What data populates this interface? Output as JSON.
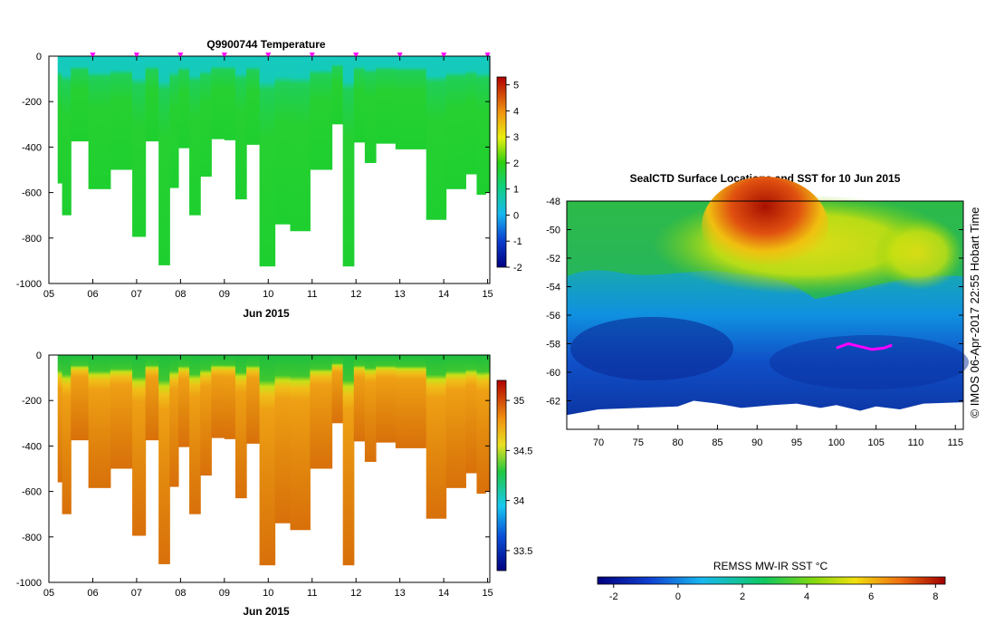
{
  "chart_data": [
    {
      "type": "heatmap",
      "title": "Q9900744  Temperature",
      "xlabel": "Jun 2015",
      "ylabel": "",
      "xlim": [
        5,
        15.05
      ],
      "ylim": [
        -1000,
        0
      ],
      "xticks": [
        "05",
        "06",
        "07",
        "08",
        "09",
        "10",
        "11",
        "12",
        "13",
        "14",
        "15"
      ],
      "yticks": [
        "0",
        "-200",
        "-400",
        "-600",
        "-800",
        "-1000"
      ],
      "colorbar": {
        "ticks": [
          "5",
          "4",
          "3",
          "2",
          "1",
          "0",
          "-1",
          "-2"
        ],
        "range": [
          -2,
          5.3
        ]
      },
      "profile_markers_x": [
        6.0,
        7.0,
        8.0,
        9.0,
        10.0,
        11.0,
        12.0,
        13.0,
        14.0,
        15.0
      ],
      "profiles": [
        {
          "x0": 5.2,
          "x1": 5.3,
          "bottom": -560
        },
        {
          "x0": 5.3,
          "x1": 5.5,
          "bottom": -700
        },
        {
          "x0": 5.5,
          "x1": 5.9,
          "bottom": -375
        },
        {
          "x0": 5.9,
          "x1": 6.4,
          "bottom": -585
        },
        {
          "x0": 6.4,
          "x1": 6.9,
          "bottom": -500
        },
        {
          "x0": 6.9,
          "x1": 7.2,
          "bottom": -795
        },
        {
          "x0": 7.2,
          "x1": 7.5,
          "bottom": -375
        },
        {
          "x0": 7.5,
          "x1": 7.75,
          "bottom": -920
        },
        {
          "x0": 7.75,
          "x1": 7.95,
          "bottom": -580
        },
        {
          "x0": 7.95,
          "x1": 8.2,
          "bottom": -405
        },
        {
          "x0": 8.2,
          "x1": 8.45,
          "bottom": -700
        },
        {
          "x0": 8.45,
          "x1": 8.7,
          "bottom": -530
        },
        {
          "x0": 8.7,
          "x1": 9.0,
          "bottom": -365
        },
        {
          "x0": 9.0,
          "x1": 9.25,
          "bottom": -370
        },
        {
          "x0": 9.25,
          "x1": 9.5,
          "bottom": -630
        },
        {
          "x0": 9.5,
          "x1": 9.8,
          "bottom": -390
        },
        {
          "x0": 9.8,
          "x1": 10.15,
          "bottom": -925
        },
        {
          "x0": 10.15,
          "x1": 10.5,
          "bottom": -740
        },
        {
          "x0": 10.5,
          "x1": 10.95,
          "bottom": -770
        },
        {
          "x0": 10.95,
          "x1": 11.45,
          "bottom": -500
        },
        {
          "x0": 11.45,
          "x1": 11.7,
          "bottom": -300
        },
        {
          "x0": 11.7,
          "x1": 11.95,
          "bottom": -925
        },
        {
          "x0": 11.95,
          "x1": 12.2,
          "bottom": -380
        },
        {
          "x0": 12.2,
          "x1": 12.45,
          "bottom": -470
        },
        {
          "x0": 12.45,
          "x1": 12.9,
          "bottom": -385
        },
        {
          "x0": 12.9,
          "x1": 13.5,
          "bottom": -410
        },
        {
          "x0": 13.5,
          "x1": 13.6,
          "bottom": -410
        },
        {
          "x0": 13.6,
          "x1": 14.05,
          "bottom": -720
        },
        {
          "x0": 14.05,
          "x1": 14.5,
          "bottom": -585
        },
        {
          "x0": 14.5,
          "x1": 14.75,
          "bottom": -520
        },
        {
          "x0": 14.75,
          "x1": 14.95,
          "bottom": -610
        },
        {
          "x0": 14.95,
          "x1": 15.05,
          "bottom": -600
        }
      ]
    },
    {
      "type": "heatmap",
      "title": "",
      "xlabel": "Jun 2015",
      "ylabel": "",
      "xlim": [
        5,
        15.05
      ],
      "ylim": [
        -1000,
        0
      ],
      "xticks": [
        "05",
        "06",
        "07",
        "08",
        "09",
        "10",
        "11",
        "12",
        "13",
        "14",
        "15"
      ],
      "yticks": [
        "0",
        "-200",
        "-400",
        "-600",
        "-800",
        "-1000"
      ],
      "colorbar": {
        "ticks": [
          "35",
          "34.5",
          "34",
          "33.5"
        ],
        "range": [
          33.3,
          35.2
        ]
      },
      "mixed_layer_depth": -140
    },
    {
      "type": "heatmap",
      "title": "SealCTD Surface Locations and SST for 10 Jun 2015",
      "xlabel": "",
      "ylabel": "",
      "xlim": [
        66,
        116
      ],
      "ylim": [
        -64,
        -48
      ],
      "xticks": [
        "70",
        "75",
        "80",
        "85",
        "90",
        "95",
        "100",
        "105",
        "110",
        "115"
      ],
      "yticks": [
        "-48",
        "-50",
        "-52",
        "-54",
        "-56",
        "-58",
        "-60",
        "-62"
      ],
      "colorbar": {
        "label": "REMSS MW-IR SST °C",
        "ticks": [
          "-2",
          "0",
          "2",
          "4",
          "6",
          "8"
        ],
        "range": [
          -2.5,
          8.3
        ]
      },
      "track": [
        [
          100.0,
          -58.3
        ],
        [
          101.5,
          -58.0
        ],
        [
          103.0,
          -58.2
        ],
        [
          104.5,
          -58.4
        ],
        [
          106.0,
          -58.3
        ],
        [
          107.0,
          -58.1
        ]
      ],
      "coast": [
        [
          66,
          -63.0
        ],
        [
          70,
          -62.6
        ],
        [
          75,
          -62.5
        ],
        [
          80,
          -62.4
        ],
        [
          82,
          -62.0
        ],
        [
          85,
          -62.2
        ],
        [
          88,
          -62.5
        ],
        [
          92,
          -62.3
        ],
        [
          95,
          -62.2
        ],
        [
          98,
          -62.5
        ],
        [
          100,
          -62.3
        ],
        [
          103,
          -62.7
        ],
        [
          105,
          -62.4
        ],
        [
          108,
          -62.6
        ],
        [
          111,
          -62.2
        ],
        [
          116,
          -62.1
        ]
      ],
      "side_label": "©  IMOS 06-Apr-2017 22:55 Hobart Time"
    }
  ],
  "colors": {
    "temp_surface": "#19cbbe",
    "temp_deep": "#1fcf35",
    "sal_surface": "#1fbf40",
    "sal_deep": "#e2900f",
    "marker": "#ff00ff",
    "track": "#ff00ff"
  }
}
